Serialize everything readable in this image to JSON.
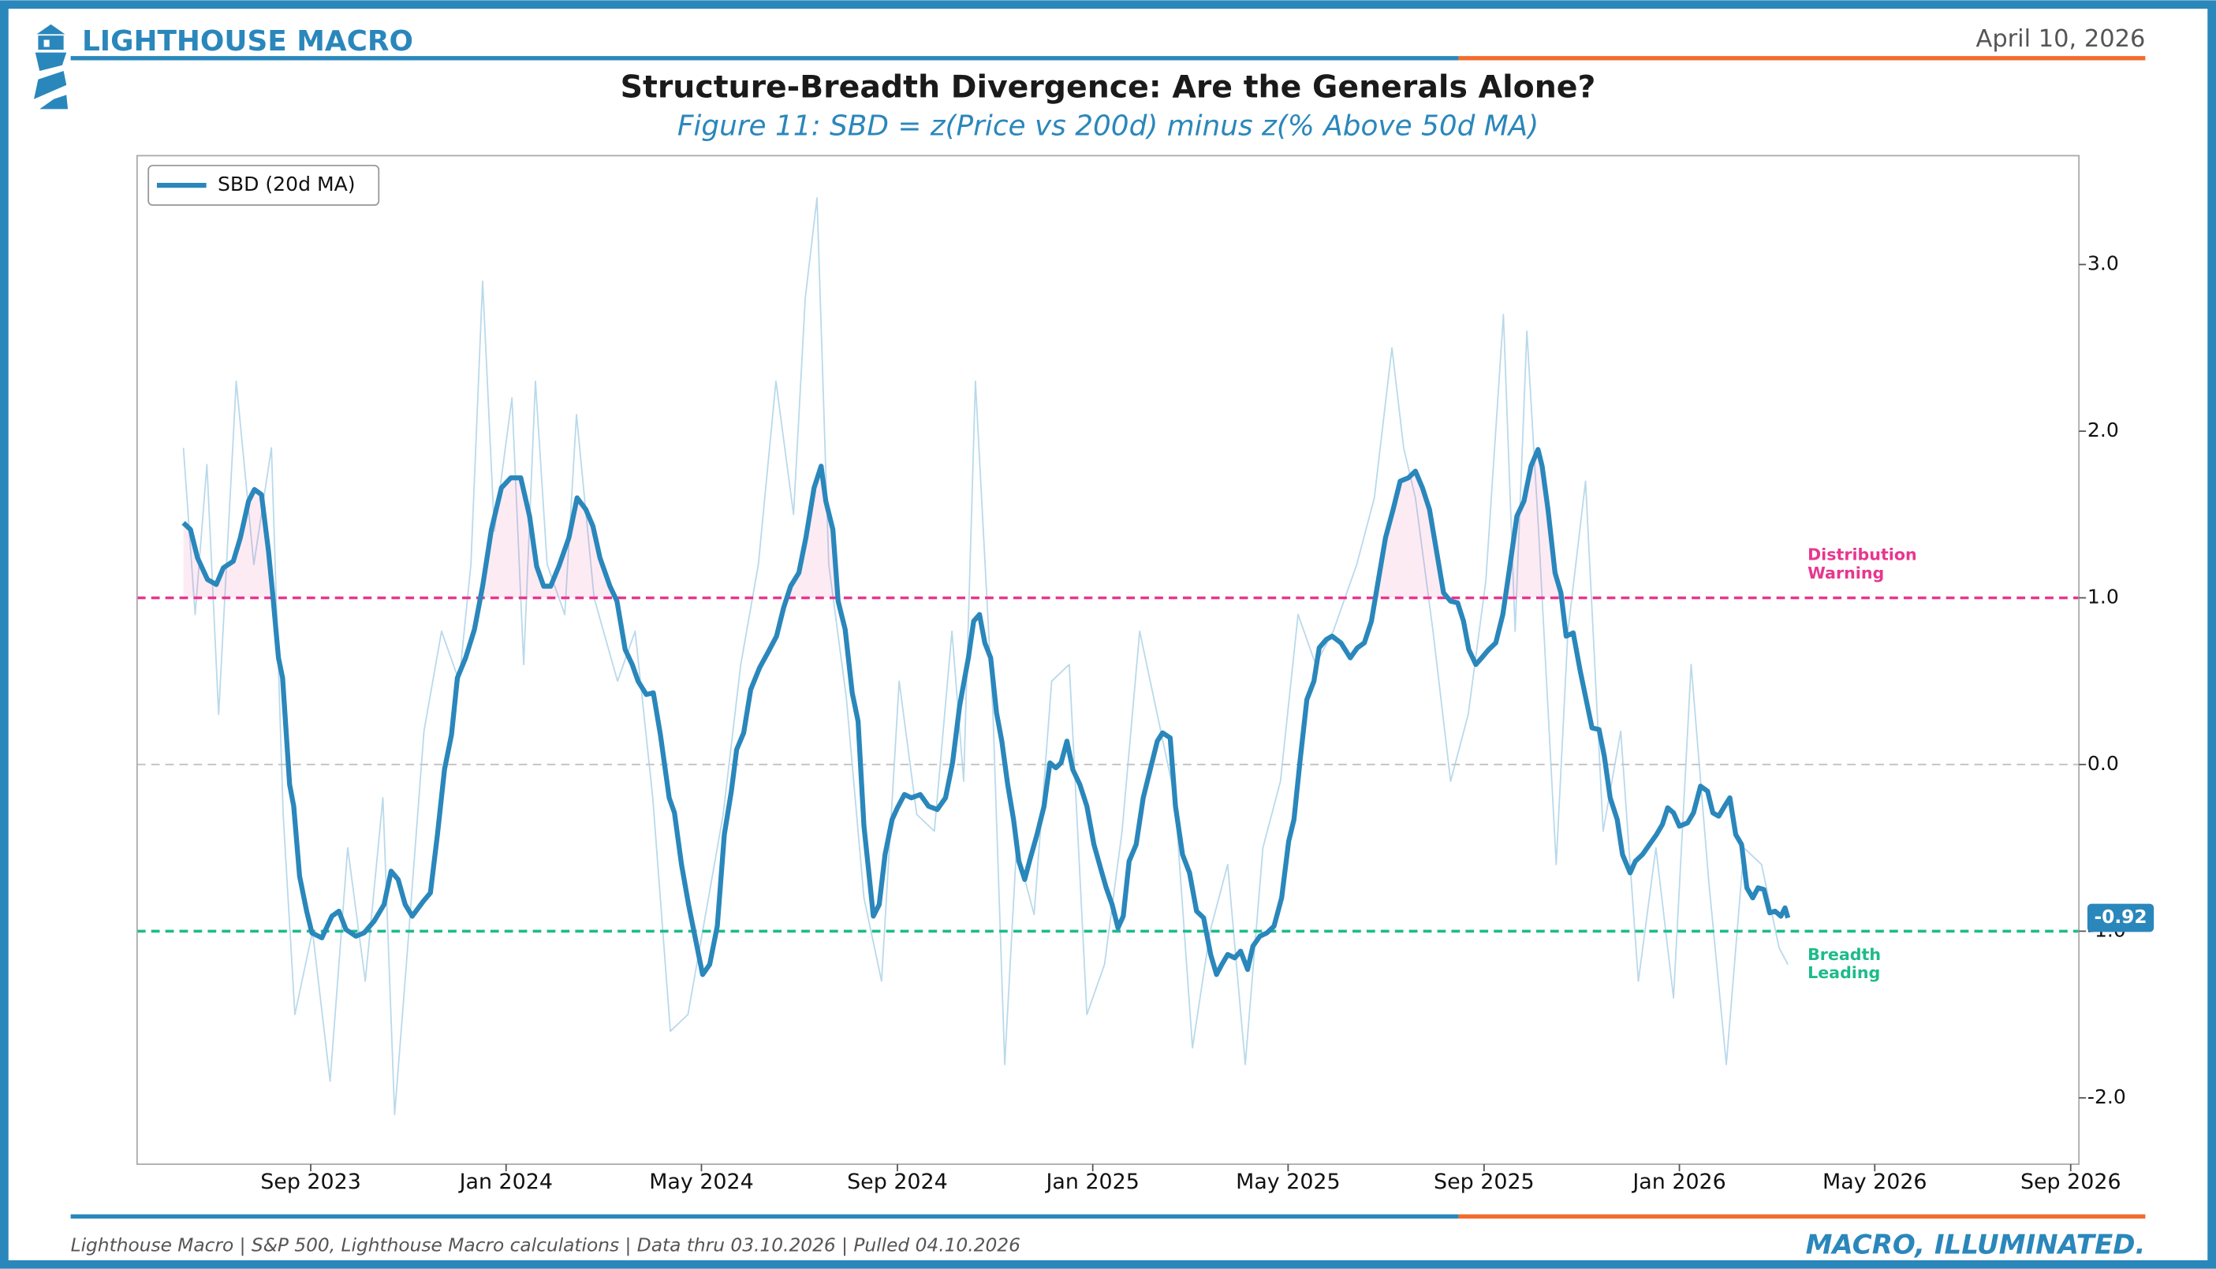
{
  "header": {
    "brand": "LIGHTHOUSE MACRO",
    "date": "April 10, 2026"
  },
  "footer": {
    "source": "Lighthouse Macro | S&P 500, Lighthouse Macro calculations | Data thru 03.10.2026 | Pulled 04.10.2026",
    "tagline": "MACRO, ILLUMINATED."
  },
  "chart_data": {
    "type": "line",
    "title": "Structure-Breadth Divergence: Are the Generals Alone?",
    "subtitle": "Figure 11: SBD = z(Price vs 200d) minus z(% Above 50d MA)",
    "legend": "upper left",
    "xlim": [
      2023.371,
      2026.681
    ],
    "xticks": [
      {
        "value": 2023.667,
        "label": "Sep 2023"
      },
      {
        "value": 2024,
        "label": "Jan 2024"
      },
      {
        "value": 2024.333,
        "label": "May 2024"
      },
      {
        "value": 2024.667,
        "label": "Sep 2024"
      },
      {
        "value": 2025,
        "label": "Jan 2025"
      },
      {
        "value": 2025.333,
        "label": "May 2025"
      },
      {
        "value": 2025.667,
        "label": "Sep 2025"
      },
      {
        "value": 2026,
        "label": "Jan 2026"
      },
      {
        "value": 2026.333,
        "label": "May 2026"
      },
      {
        "value": 2026.667,
        "label": "Sep 2026"
      }
    ],
    "ylim": [
      -2.398,
      3.653
    ],
    "yticks": [
      {
        "value": -2,
        "label": "-2.0"
      },
      {
        "value": -1,
        "label": "-1.0"
      },
      {
        "value": 0,
        "label": "0.0"
      },
      {
        "value": 1,
        "label": "1.0"
      },
      {
        "value": 2,
        "label": "2.0"
      },
      {
        "value": 3,
        "label": "3.0"
      }
    ],
    "y_axis_side": "right",
    "reference_lines": [
      {
        "value": 1,
        "color": "#e8368f",
        "label": [
          "Distribution",
          "Warning"
        ]
      },
      {
        "value": 0,
        "color": "#c8c8c8"
      },
      {
        "value": -1,
        "color": "#1dbb8a",
        "label": [
          "Breadth",
          "Leading"
        ]
      }
    ],
    "x": [
      2023.45,
      2023.462,
      2023.474,
      2023.491,
      2023.506,
      2023.518,
      2023.535,
      2023.547,
      2023.561,
      2023.571,
      2023.583,
      2023.595,
      2023.602,
      2023.612,
      2023.619,
      2023.631,
      2023.638,
      2023.648,
      2023.66,
      2023.669,
      2023.686,
      2023.703,
      2023.715,
      2023.727,
      2023.744,
      2023.758,
      2023.775,
      2023.792,
      2023.804,
      2023.816,
      2023.828,
      2023.84,
      2023.859,
      2023.871,
      2023.883,
      2023.895,
      2023.907,
      2023.917,
      2023.931,
      2023.946,
      2023.96,
      2023.975,
      2023.992,
      2024.008,
      2024.025,
      2024.04,
      2024.052,
      2024.064,
      2024.076,
      2024.09,
      2024.107,
      2024.121,
      2024.136,
      2024.148,
      2024.16,
      2024.177,
      2024.189,
      2024.203,
      2024.215,
      2024.225,
      2024.239,
      2024.251,
      2024.263,
      2024.278,
      2024.287,
      2024.299,
      2024.311,
      2024.323,
      2024.335,
      2024.347,
      2024.36,
      2024.372,
      2024.384,
      2024.393,
      2024.405,
      2024.417,
      2024.432,
      2024.446,
      2024.461,
      2024.473,
      2024.485,
      2024.499,
      2024.511,
      2024.525,
      2024.537,
      2024.545,
      2024.557,
      2024.566,
      2024.578,
      2024.59,
      2024.6,
      2024.61,
      2024.619,
      2024.626,
      2024.636,
      2024.646,
      2024.658,
      2024.667,
      2024.679,
      2024.691,
      2024.706,
      2024.72,
      2024.735,
      2024.749,
      2024.761,
      2024.773,
      2024.788,
      2024.797,
      2024.807,
      2024.816,
      2024.826,
      2024.836,
      2024.845,
      2024.855,
      2024.865,
      2024.874,
      2024.884,
      2024.893,
      2024.905,
      2024.917,
      2024.927,
      2024.937,
      2024.946,
      2024.956,
      2024.966,
      2024.978,
      2024.99,
      2025.002,
      2025.014,
      2025.023,
      2025.033,
      2025.043,
      2025.052,
      2025.062,
      2025.074,
      2025.086,
      2025.098,
      2025.11,
      2025.119,
      2025.132,
      2025.141,
      2025.153,
      2025.165,
      2025.177,
      2025.189,
      2025.201,
      2025.211,
      2025.22,
      2025.23,
      2025.242,
      2025.252,
      2025.264,
      2025.273,
      2025.285,
      2025.297,
      2025.309,
      2025.322,
      2025.334,
      2025.343,
      2025.353,
      2025.365,
      2025.377,
      2025.386,
      2025.398,
      2025.408,
      2025.423,
      2025.439,
      2025.451,
      2025.463,
      2025.475,
      2025.487,
      2025.499,
      2025.512,
      2025.524,
      2025.538,
      2025.55,
      2025.562,
      2025.574,
      2025.586,
      2025.598,
      2025.61,
      2025.622,
      2025.632,
      2025.641,
      2025.653,
      2025.663,
      2025.675,
      2025.687,
      2025.699,
      2025.711,
      2025.723,
      2025.735,
      2025.747,
      2025.759,
      2025.766,
      2025.776,
      2025.788,
      2025.798,
      2025.807,
      2025.819,
      2025.831,
      2025.841,
      2025.851,
      2025.863,
      2025.872,
      2025.882,
      2025.894,
      2025.903,
      2025.916,
      2025.925,
      2025.937,
      2025.949,
      2025.961,
      2025.971,
      2025.98,
      2025.99,
      2026.0,
      2026.014,
      2026.024,
      2026.036,
      2026.048,
      2026.057,
      2026.067,
      2026.077,
      2026.086,
      2026.096,
      2026.106,
      2026.115,
      2026.125,
      2026.134,
      2026.144,
      2026.154,
      2026.163,
      2026.173,
      2026.18,
      2026.185
    ],
    "series": [
      {
        "name": "SBD (20d MA)",
        "color": "#2a87bb",
        "values": [
          1.45,
          1.41,
          1.24,
          1.11,
          1.08,
          1.18,
          1.22,
          1.36,
          1.58,
          1.65,
          1.62,
          1.28,
          1.03,
          0.64,
          0.52,
          -0.12,
          -0.25,
          -0.67,
          -0.88,
          -1.01,
          -1.04,
          -0.91,
          -0.88,
          -0.99,
          -1.03,
          -1.01,
          -0.94,
          -0.84,
          -0.64,
          -0.69,
          -0.84,
          -0.91,
          -0.82,
          -0.77,
          -0.42,
          -0.03,
          0.18,
          0.52,
          0.64,
          0.81,
          1.07,
          1.41,
          1.66,
          1.72,
          1.72,
          1.49,
          1.19,
          1.07,
          1.07,
          1.19,
          1.36,
          1.6,
          1.53,
          1.43,
          1.24,
          1.07,
          0.98,
          0.69,
          0.6,
          0.5,
          0.42,
          0.43,
          0.18,
          -0.2,
          -0.29,
          -0.6,
          -0.84,
          -1.05,
          -1.26,
          -1.2,
          -0.97,
          -0.42,
          -0.16,
          0.09,
          0.19,
          0.45,
          0.58,
          0.67,
          0.77,
          0.94,
          1.07,
          1.15,
          1.36,
          1.66,
          1.79,
          1.58,
          1.41,
          0.98,
          0.81,
          0.43,
          0.26,
          -0.37,
          -0.67,
          -0.91,
          -0.84,
          -0.54,
          -0.33,
          -0.26,
          -0.18,
          -0.2,
          -0.18,
          -0.25,
          -0.27,
          -0.2,
          0.01,
          0.35,
          0.64,
          0.86,
          0.9,
          0.73,
          0.64,
          0.31,
          0.14,
          -0.12,
          -0.33,
          -0.58,
          -0.69,
          -0.57,
          -0.42,
          -0.25,
          0.01,
          -0.02,
          0.01,
          0.14,
          -0.03,
          -0.12,
          -0.25,
          -0.48,
          -0.63,
          -0.74,
          -0.84,
          -0.98,
          -0.91,
          -0.58,
          -0.48,
          -0.2,
          -0.03,
          0.14,
          0.19,
          0.16,
          -0.25,
          -0.54,
          -0.65,
          -0.88,
          -0.92,
          -1.14,
          -1.26,
          -1.2,
          -1.14,
          -1.16,
          -1.12,
          -1.23,
          -1.09,
          -1.03,
          -1.01,
          -0.97,
          -0.8,
          -0.46,
          -0.33,
          0.01,
          0.39,
          0.5,
          0.7,
          0.75,
          0.77,
          0.73,
          0.64,
          0.7,
          0.73,
          0.86,
          1.11,
          1.36,
          1.53,
          1.7,
          1.72,
          1.76,
          1.66,
          1.53,
          1.28,
          1.03,
          0.98,
          0.97,
          0.86,
          0.69,
          0.6,
          0.64,
          0.69,
          0.73,
          0.9,
          1.19,
          1.49,
          1.58,
          1.79,
          1.89,
          1.79,
          1.53,
          1.15,
          1.03,
          0.77,
          0.79,
          0.56,
          0.39,
          0.22,
          0.21,
          0.05,
          -0.2,
          -0.33,
          -0.54,
          -0.65,
          -0.58,
          -0.54,
          -0.48,
          -0.42,
          -0.36,
          -0.26,
          -0.29,
          -0.37,
          -0.35,
          -0.29,
          -0.13,
          -0.16,
          -0.29,
          -0.31,
          -0.25,
          -0.2,
          -0.42,
          -0.48,
          -0.74,
          -0.8,
          -0.74,
          -0.75,
          -0.89,
          -0.88,
          -0.91,
          -0.86,
          -0.92
        ]
      },
      {
        "color": "#a8d0e6",
        "x": [
          2023.45,
          2023.47,
          2023.49,
          2023.51,
          2023.54,
          2023.57,
          2023.6,
          2023.62,
          2023.64,
          2023.67,
          2023.7,
          2023.73,
          2023.76,
          2023.79,
          2023.81,
          2023.83,
          2023.86,
          2023.89,
          2023.92,
          2023.94,
          2023.96,
          2023.98,
          2024.01,
          2024.03,
          2024.05,
          2024.07,
          2024.1,
          2024.12,
          2024.15,
          2024.19,
          2024.22,
          2024.25,
          2024.28,
          2024.31,
          2024.34,
          2024.37,
          2024.4,
          2024.43,
          2024.46,
          2024.49,
          2024.51,
          2024.53,
          2024.55,
          2024.58,
          2024.61,
          2024.64,
          2024.67,
          2024.7,
          2024.73,
          2024.76,
          2024.78,
          2024.8,
          2024.83,
          2024.85,
          2024.87,
          2024.9,
          2024.93,
          2024.96,
          2024.99,
          2025.02,
          2025.05,
          2025.08,
          2025.11,
          2025.14,
          2025.17,
          2025.2,
          2025.23,
          2025.26,
          2025.29,
          2025.32,
          2025.35,
          2025.38,
          2025.41,
          2025.45,
          2025.48,
          2025.51,
          2025.53,
          2025.55,
          2025.58,
          2025.61,
          2025.64,
          2025.67,
          2025.7,
          2025.72,
          2025.74,
          2025.76,
          2025.79,
          2025.81,
          2025.84,
          2025.87,
          2025.9,
          2025.93,
          2025.96,
          2025.99,
          2026.02,
          2026.05,
          2026.08,
          2026.11,
          2026.14,
          2026.17,
          2026.185
        ],
        "values": [
          1.9,
          0.9,
          1.8,
          0.3,
          2.3,
          1.2,
          1.9,
          -0.3,
          -1.5,
          -1.0,
          -1.9,
          -0.5,
          -1.3,
          -0.2,
          -2.1,
          -1.2,
          0.2,
          0.8,
          0.5,
          1.2,
          2.9,
          1.4,
          2.2,
          0.6,
          2.3,
          1.2,
          0.9,
          2.1,
          1.0,
          0.5,
          0.8,
          -0.2,
          -1.6,
          -1.5,
          -0.9,
          -0.3,
          0.6,
          1.2,
          2.3,
          1.5,
          2.8,
          3.4,
          1.2,
          0.4,
          -0.8,
          -1.3,
          0.5,
          -0.3,
          -0.4,
          0.8,
          -0.1,
          2.3,
          0.3,
          -1.8,
          -0.5,
          -0.9,
          0.5,
          0.6,
          -1.5,
          -1.2,
          -0.4,
          0.8,
          0.3,
          -0.2,
          -1.7,
          -1.0,
          -0.6,
          -1.8,
          -0.5,
          -0.1,
          0.9,
          0.6,
          0.8,
          1.2,
          1.6,
          2.5,
          1.9,
          1.6,
          0.8,
          -0.1,
          0.3,
          1.1,
          2.7,
          0.8,
          2.6,
          1.4,
          -0.6,
          0.8,
          1.7,
          -0.4,
          0.2,
          -1.3,
          -0.5,
          -1.4,
          0.6,
          -0.7,
          -1.8,
          -0.5,
          -0.6,
          -1.1,
          -1.2
        ]
      }
    ]
  }
}
